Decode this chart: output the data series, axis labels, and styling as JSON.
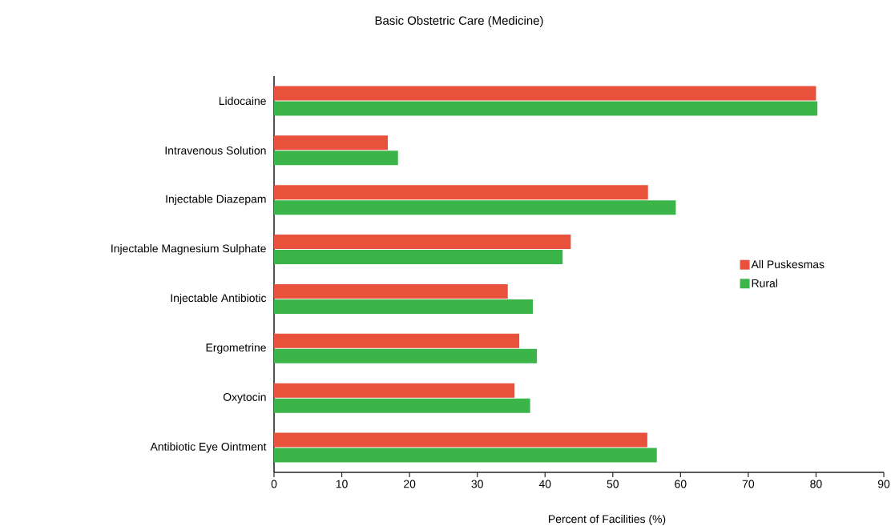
{
  "chart_data": {
    "type": "bar",
    "orientation": "horizontal",
    "title": "Basic Obstetric Care (Medicine)",
    "xlabel": "Percent of Facilities (%)",
    "categories": [
      "Lidocaine",
      "Intravenous Solution",
      "Injectable Diazepam",
      "Injectable Magnesium Sulphate",
      "Injectable Antibiotic",
      "Ergometrine",
      "Oxytocin",
      "Antibiotic Eye Ointment"
    ],
    "series": [
      {
        "name": "All Puskesmas",
        "color": "#e8513c",
        "values": [
          80.0,
          16.8,
          55.2,
          43.8,
          34.5,
          36.2,
          35.5,
          55.1
        ]
      },
      {
        "name": "Rural",
        "color": "#3bb54a",
        "values": [
          80.2,
          18.3,
          59.3,
          42.6,
          38.2,
          38.8,
          37.8,
          56.5
        ]
      }
    ],
    "xlim": [
      0,
      90
    ],
    "xticks": [
      0,
      10,
      20,
      30,
      40,
      50,
      60,
      70,
      80,
      90
    ],
    "grid": false,
    "legend": "right"
  }
}
